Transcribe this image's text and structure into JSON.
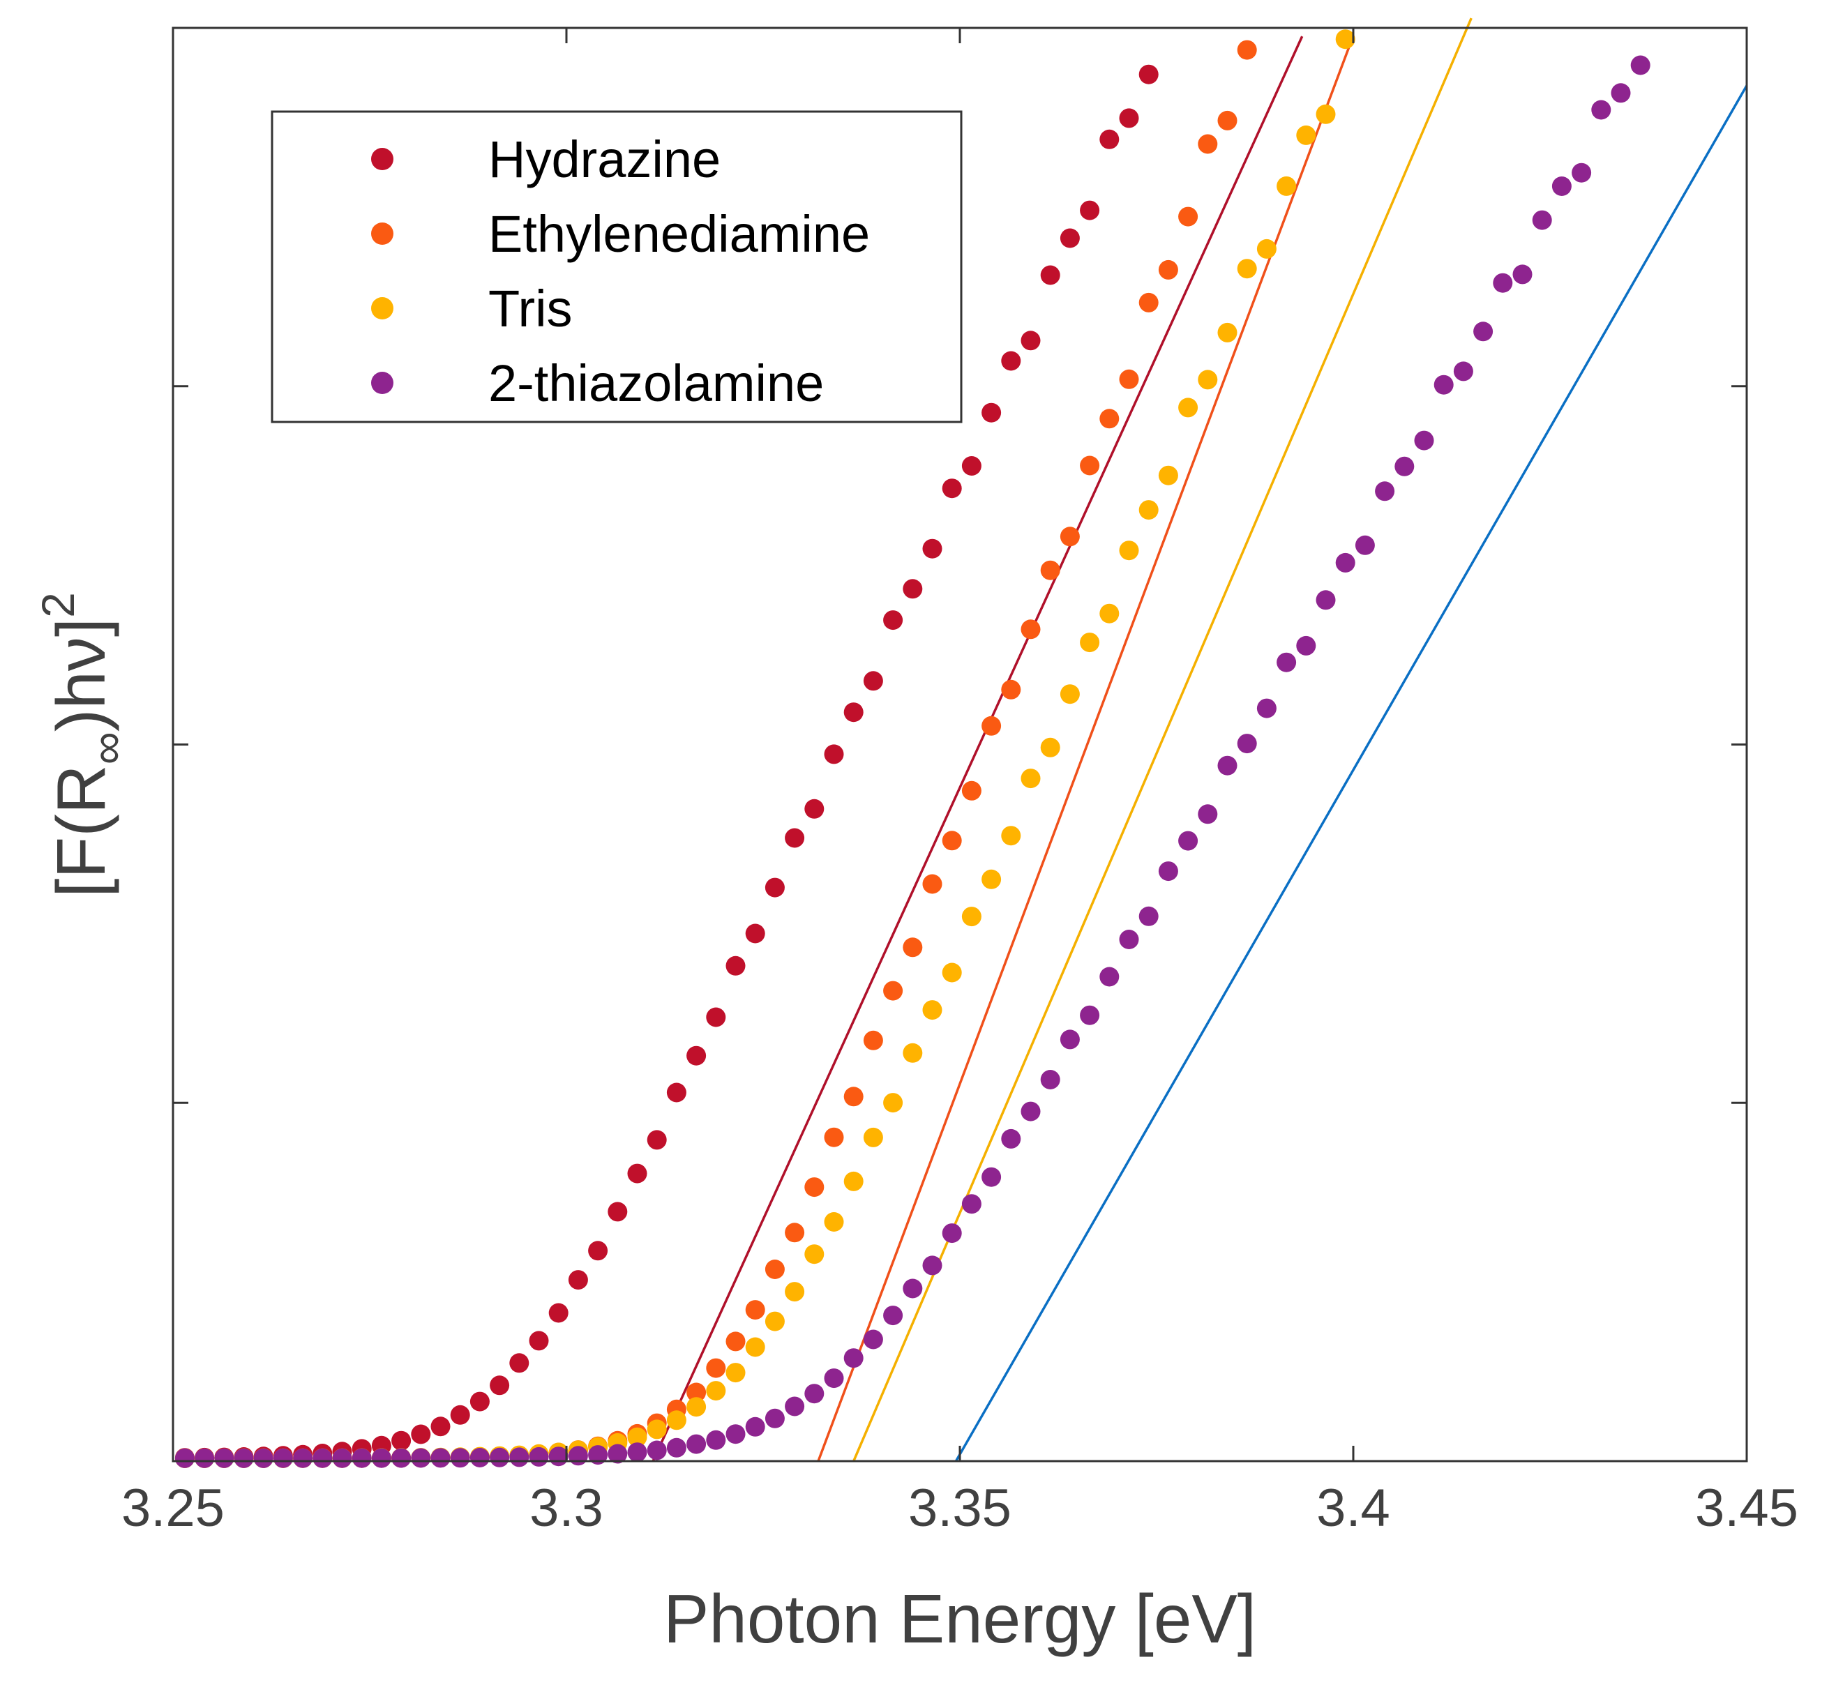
{
  "chart_data": {
    "type": "scatter",
    "title": "",
    "xlabel": "Photon Energy [eV]",
    "ylabel_parts": {
      "open": "[F(R",
      "sub": "∞",
      "close": ")hν]",
      "sup": "2"
    },
    "xlim": [
      3.25,
      3.45
    ],
    "ylim": [
      0,
      4
    ],
    "y_ticks_labeled": false,
    "x_ticks": [
      {
        "value": 3.25,
        "label": "3.25"
      },
      {
        "value": 3.3,
        "label": "3.3"
      },
      {
        "value": 3.35,
        "label": "3.35"
      },
      {
        "value": 3.4,
        "label": "3.4"
      },
      {
        "value": 3.45,
        "label": "3.45"
      }
    ],
    "y_ticks": [
      0,
      1,
      2,
      3,
      4
    ],
    "legend_position": "top-left",
    "series": [
      {
        "name": "Hydrazine",
        "color": "#c0102b",
        "fit_line_color": "#b0102a",
        "onset": 3.2935,
        "alpha": 0.0075,
        "slope": 48.2,
        "x0": 3.311,
        "xmax": 3.394,
        "line_end": 3.3935
      },
      {
        "name": "Ethylenediamine",
        "color": "#fa5a12",
        "fit_line_color": "#f0501a",
        "onset": 3.3195,
        "alpha": 0.0065,
        "slope": 58.5,
        "x0": 3.332,
        "xmax": 3.399,
        "line_end": 3.4
      },
      {
        "name": "Tris",
        "color": "#ffb300",
        "fit_line_color": "#f5b000",
        "onset": 3.3225,
        "alpha": 0.0075,
        "slope": 51.3,
        "x0": 3.3365,
        "xmax": 3.4135,
        "line_end": 3.415
      },
      {
        "name": "2-thiazolamine",
        "color": "#8e248f",
        "fit_line_color": "#0a6fc4",
        "onset": 3.334,
        "alpha": 0.0085,
        "slope": 38.2,
        "x0": 3.3495,
        "xmax": 3.45,
        "line_end": 3.45
      }
    ]
  }
}
